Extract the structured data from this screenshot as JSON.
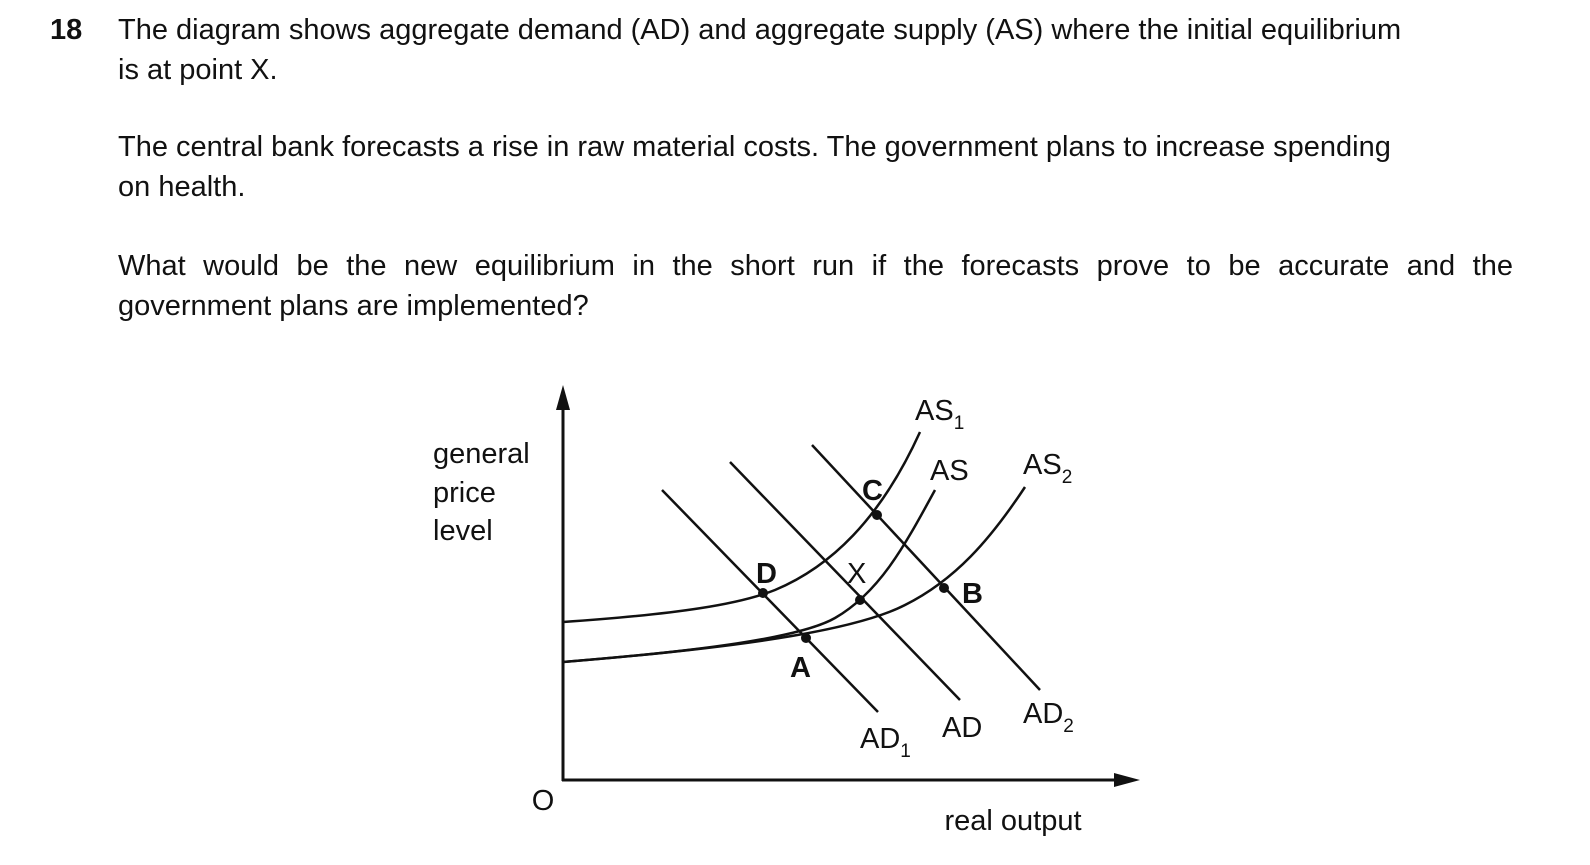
{
  "question": {
    "number": "18",
    "paragraphs": [
      [
        "The diagram shows aggregate demand (AD) and aggregate supply (AS) where the initial equilibrium",
        "is at point X."
      ],
      [
        "The central bank forecasts a rise in raw material costs. The government plans to increase spending",
        "on health."
      ],
      [
        "What would be the new equilibrium in the short run if the forecasts prove to be accurate and the",
        "government plans are implemented?"
      ]
    ]
  },
  "diagram": {
    "y_axis_label": [
      "general",
      "price",
      "level"
    ],
    "x_axis_label": "real output",
    "origin": "O",
    "curves": [
      {
        "name": "AS",
        "subscript": "1"
      },
      {
        "name": "AS"
      },
      {
        "name": "AS",
        "subscript": "2"
      },
      {
        "name": "AD",
        "subscript": "1"
      },
      {
        "name": "AD"
      },
      {
        "name": "AD",
        "subscript": "2"
      }
    ],
    "points": [
      "C",
      "D",
      "X",
      "A",
      "B"
    ]
  }
}
